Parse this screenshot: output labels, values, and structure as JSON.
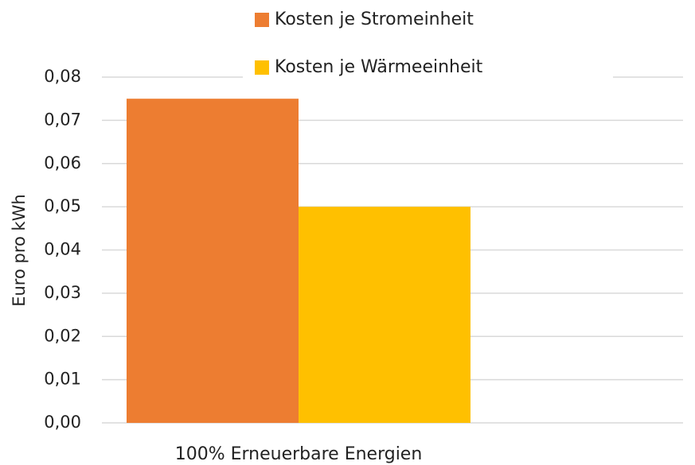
{
  "chart_data": {
    "type": "bar",
    "categories": [
      "100% Erneuerbare Energien"
    ],
    "series": [
      {
        "name": "Kosten je Stromeinheit",
        "color": "#ed7d31",
        "values": [
          0.075
        ]
      },
      {
        "name": "Kosten je Wärmeeinheit",
        "color": "#ffc000",
        "values": [
          0.05
        ]
      }
    ],
    "ylabel": "Euro pro kWh",
    "ylim": [
      0,
      0.08
    ],
    "yticks": [
      {
        "value": 0,
        "label": "0,00"
      },
      {
        "value": 0.01,
        "label": "0,01"
      },
      {
        "value": 0.02,
        "label": "0,02"
      },
      {
        "value": 0.03,
        "label": "0,03"
      },
      {
        "value": 0.04,
        "label": "0,04"
      },
      {
        "value": 0.05,
        "label": "0,05"
      },
      {
        "value": 0.06,
        "label": "0,06"
      },
      {
        "value": 0.07,
        "label": "0,07"
      },
      {
        "value": 0.08,
        "label": "0,08"
      }
    ],
    "grid": true,
    "legend": "top"
  }
}
